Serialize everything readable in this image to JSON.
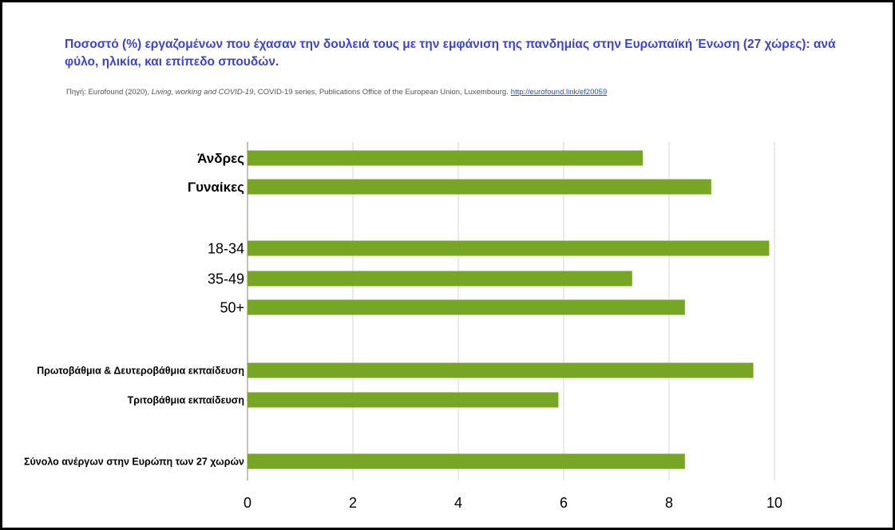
{
  "chart_data": {
    "type": "bar",
    "orientation": "horizontal",
    "title": "Ποσοστό (%) εργαζομένων που έχασαν την δουλειά τους με την εμφάνιση της πανδημίας  στην Ευρωπαϊκή Ένωση (27 χώρες): ανά φύλο, ηλικία, και επίπεδο σπουδών.",
    "source": {
      "prefix": "Πηγή: Eurofound (2020), ",
      "italic": "Living, working and COVID-19",
      "rest": ", COVID-19 series, Publications Office of the European Union, Luxembourg.",
      "link": "http://eurofound.link/ef20059"
    },
    "categories": [
      "Άνδρες",
      "Γυναίκες",
      "18-34",
      "35-49",
      "50+",
      "Πρωτοβάθμια & Δευτεροβάθμια εκπαίδευση",
      "Τριτοβάθμια εκπαίδευση",
      "Σύνολο ανέργων στην Ευρώπη των 27 χωρών"
    ],
    "values": [
      7.5,
      8.8,
      9.9,
      7.3,
      8.3,
      9.6,
      5.9,
      8.3
    ],
    "xlim": [
      0,
      10
    ],
    "xticks": [
      "0",
      "2",
      "4",
      "6",
      "8",
      "10"
    ],
    "bar_color": "#76a623",
    "grid": true,
    "legend": "none"
  }
}
